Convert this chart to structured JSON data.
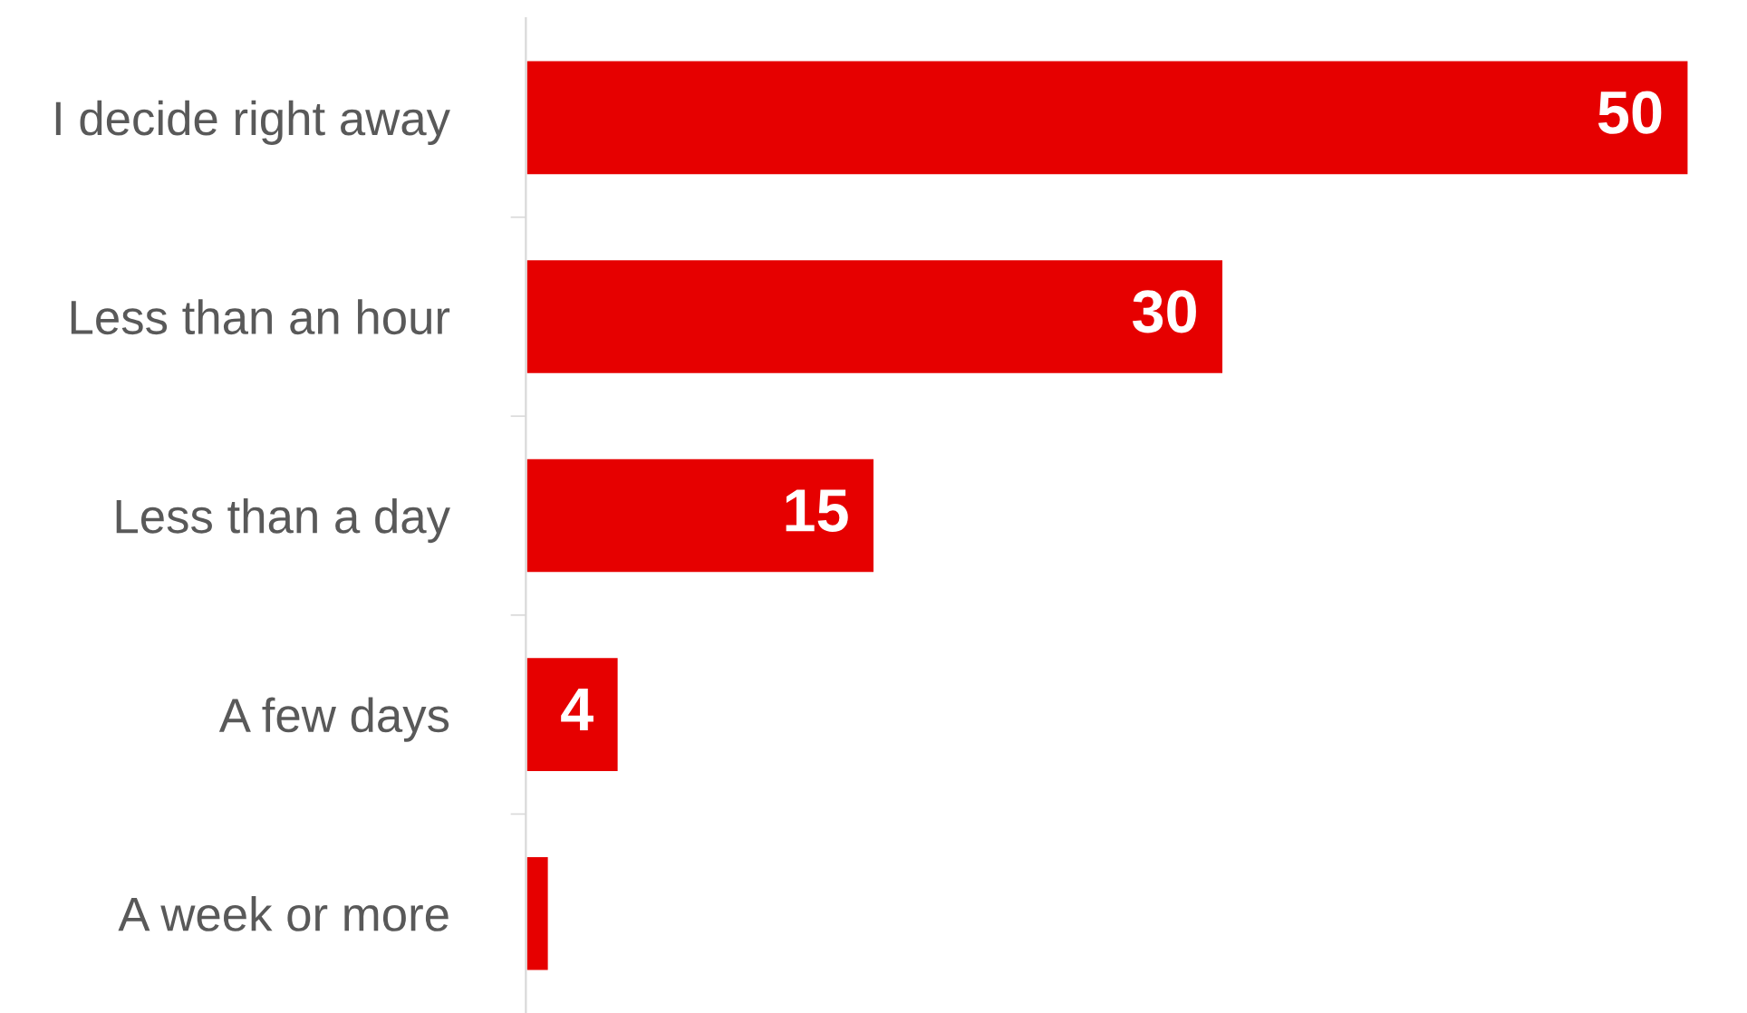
{
  "chart_data": {
    "type": "bar",
    "orientation": "horizontal",
    "categories": [
      "I decide right away",
      "Less than an hour",
      "Less than a day",
      "A few days",
      "A week or more"
    ],
    "values": [
      50,
      30,
      15,
      4,
      1
    ],
    "value_labels": [
      "50",
      "30",
      "15",
      "4",
      null
    ],
    "color": "#e60000",
    "grid": false,
    "legend": false
  }
}
